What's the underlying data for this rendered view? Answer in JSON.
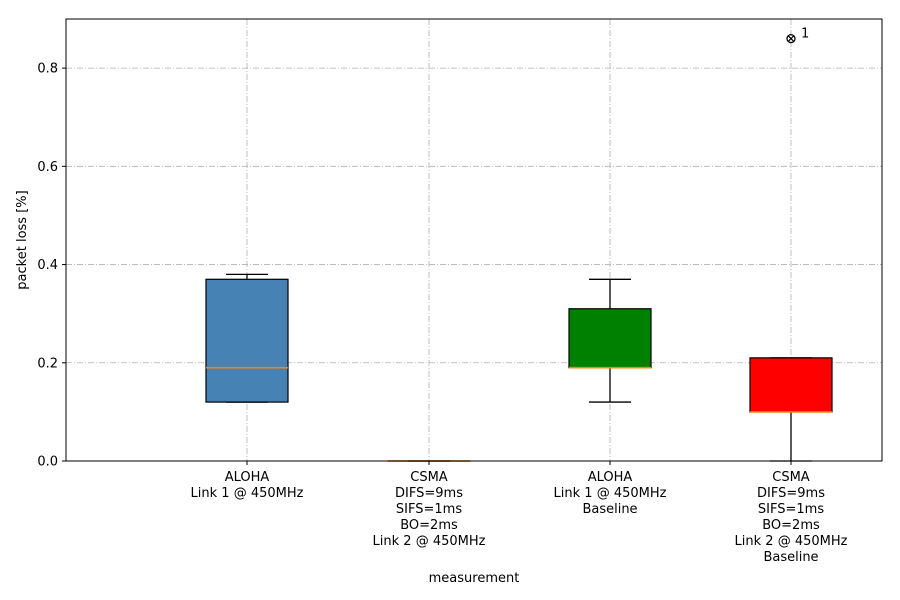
{
  "chart_data": {
    "type": "box",
    "xlabel": "measurement",
    "ylabel": "packet loss [%]",
    "ylim": [
      0,
      0.9
    ],
    "yticks": [
      0.0,
      0.2,
      0.4,
      0.6,
      0.8
    ],
    "ytick_labels": [
      "0.0",
      "0.2",
      "0.4",
      "0.6",
      "0.8"
    ],
    "grid": true,
    "categories": [
      [
        "ALOHA",
        "Link 1 @ 450MHz"
      ],
      [
        "CSMA",
        "DIFS=9ms",
        "SIFS=1ms",
        "BO=2ms",
        "Link 2 @ 450MHz"
      ],
      [
        "ALOHA",
        "Link 1 @ 450MHz",
        "Baseline"
      ],
      [
        "CSMA",
        "DIFS=9ms",
        "SIFS=1ms",
        "BO=2ms",
        "Link 2 @ 450MHz",
        "Baseline"
      ]
    ],
    "boxes": [
      {
        "whisker_low": 0.12,
        "q1": 0.12,
        "median": 0.19,
        "q3": 0.37,
        "whisker_high": 0.38,
        "color": "#4682b4",
        "outliers": []
      },
      {
        "whisker_low": 0.0,
        "q1": 0.0,
        "median": 0.0,
        "q3": 0.0,
        "whisker_high": 0.0,
        "color": "#4682b4",
        "outliers": []
      },
      {
        "whisker_low": 0.12,
        "q1": 0.19,
        "median": 0.19,
        "q3": 0.31,
        "whisker_high": 0.37,
        "color": "#008000",
        "outliers": []
      },
      {
        "whisker_low": 0.0,
        "q1": 0.1,
        "median": 0.1,
        "q3": 0.21,
        "whisker_high": 0.21,
        "color": "#ff0000",
        "outliers": [
          {
            "value": 0.86,
            "label": "1"
          }
        ]
      }
    ],
    "median_color": "#ff7f0e"
  }
}
